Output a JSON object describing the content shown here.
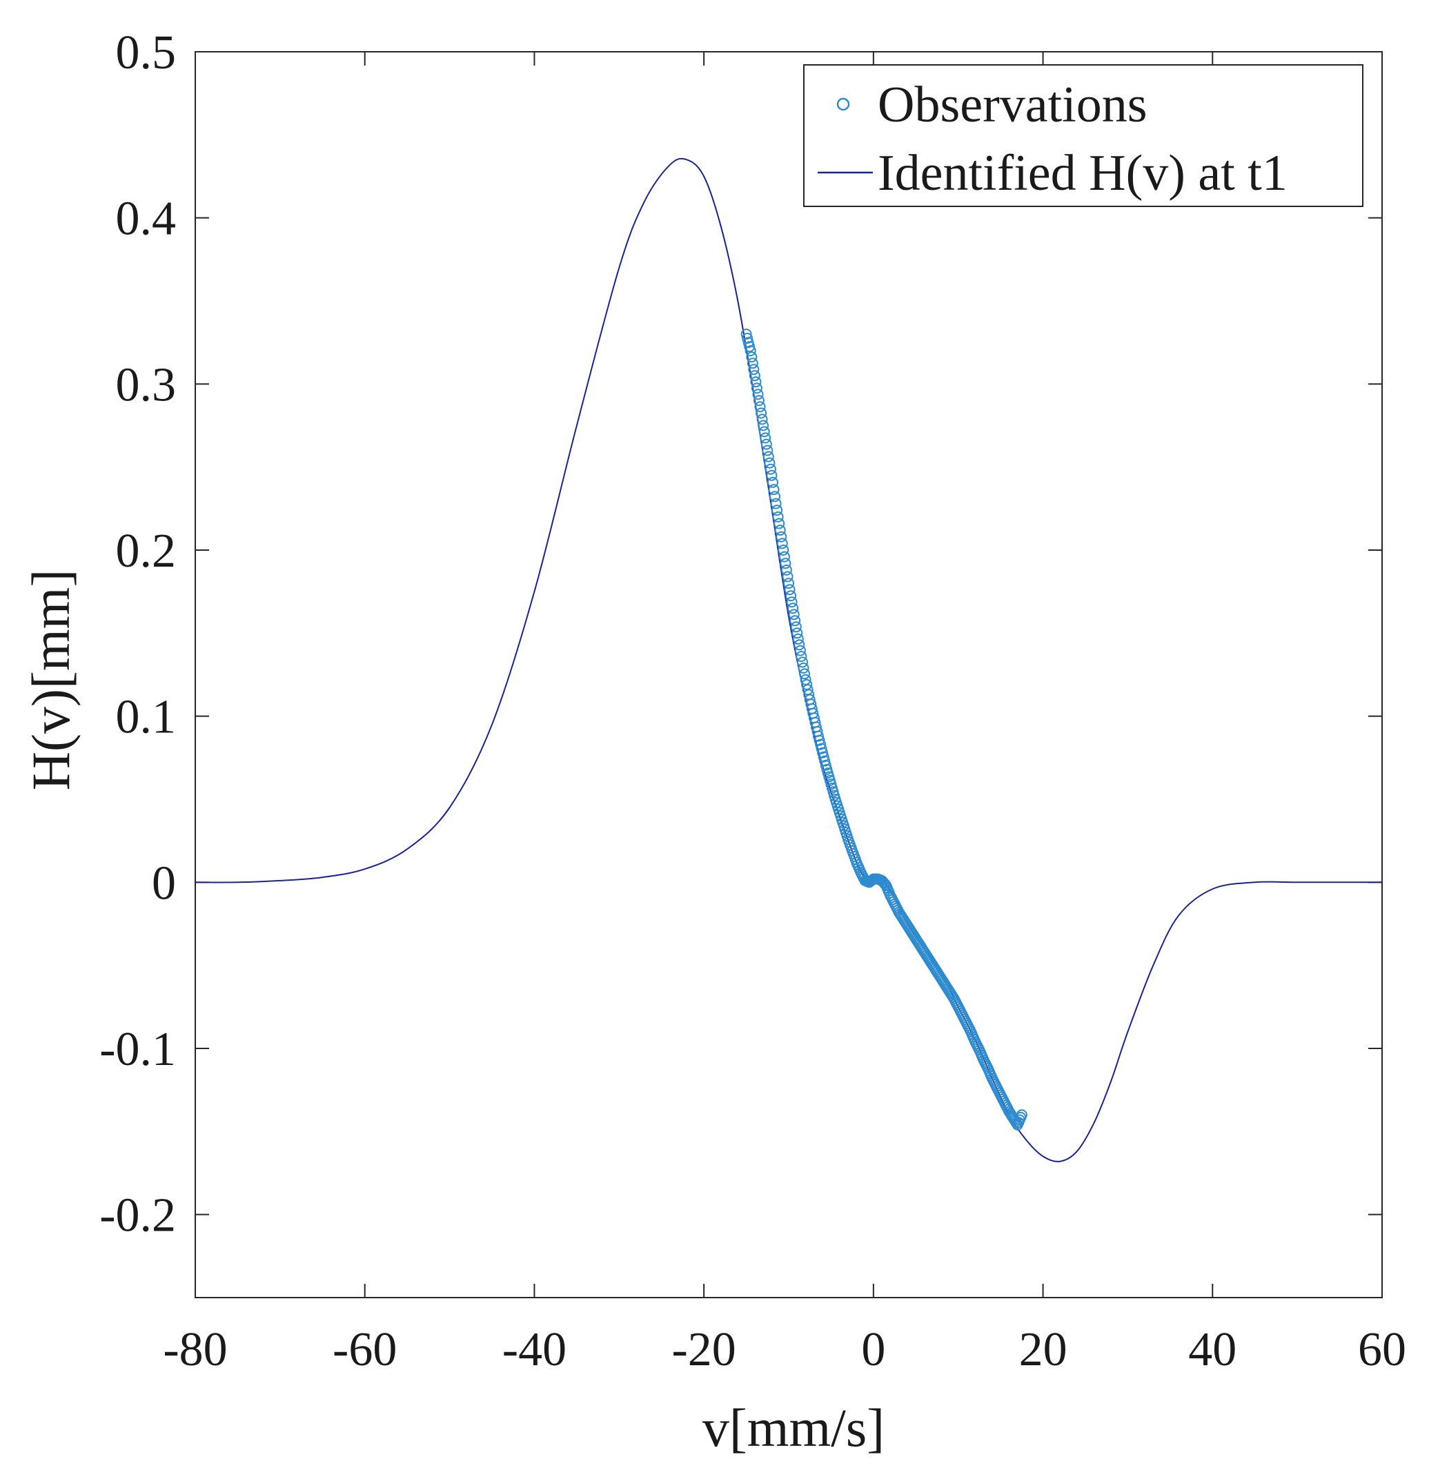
{
  "chart_data": {
    "type": "line",
    "title": "",
    "xlabel": "v[mm/s]",
    "ylabel": "H(v)[mm]",
    "xlim": [
      -80,
      60
    ],
    "ylim": [
      -0.25,
      0.5
    ],
    "xticks": [
      -80,
      -60,
      -40,
      -20,
      0,
      20,
      40,
      60
    ],
    "yticks": [
      -0.2,
      -0.1,
      0,
      0.1,
      0.2,
      0.3,
      0.4,
      0.5
    ],
    "xtick_labels": [
      "-80",
      "-60",
      "-40",
      "-20",
      "0",
      "20",
      "40",
      "60"
    ],
    "ytick_labels": [
      "-0.2",
      "-0.1",
      "0",
      "0.1",
      "0.2",
      "0.3",
      "0.4",
      "0.5"
    ],
    "legend": {
      "location": "top-right",
      "entries": [
        {
          "label": "Observations",
          "marker": "circle",
          "color": "#2e8bcf"
        },
        {
          "label": "Identified H(v) at t1",
          "marker": "line",
          "color": "#1a2396"
        }
      ]
    },
    "series": [
      {
        "name": "Identified H(v) at t1",
        "kind": "line",
        "color": "#1a2396",
        "x": [
          -80,
          -75,
          -70,
          -65,
          -60,
          -55,
          -50,
          -45,
          -40,
          -35,
          -30,
          -27,
          -24,
          -22,
          -20,
          -18,
          -16,
          -14,
          -12,
          -10,
          -8,
          -6,
          -4,
          -2,
          -1,
          0,
          1,
          2,
          4,
          6,
          8,
          10,
          12,
          14,
          16,
          18,
          20,
          22,
          24,
          26,
          28,
          30,
          33,
          36,
          40,
          45,
          50,
          55,
          60
        ],
        "y": [
          0,
          0,
          0.001,
          0.003,
          0.008,
          0.02,
          0.045,
          0.095,
          0.175,
          0.275,
          0.37,
          0.41,
          0.432,
          0.435,
          0.425,
          0.395,
          0.35,
          0.29,
          0.225,
          0.16,
          0.11,
          0.07,
          0.04,
          0.012,
          0.003,
          0.001,
          0,
          -0.005,
          -0.025,
          -0.04,
          -0.055,
          -0.075,
          -0.095,
          -0.118,
          -0.14,
          -0.155,
          -0.165,
          -0.168,
          -0.162,
          -0.145,
          -0.12,
          -0.09,
          -0.05,
          -0.02,
          -0.004,
          0,
          0,
          0,
          0
        ]
      },
      {
        "name": "Observations",
        "kind": "scatter",
        "color": "#2e8bcf",
        "x_range": [
          -15,
          17.5
        ],
        "x": [
          -15,
          -14.5,
          -14,
          -13.5,
          -13,
          -12.5,
          -12,
          -11.5,
          -11,
          -10.5,
          -10,
          -9.5,
          -9,
          -8.5,
          -8,
          -7.5,
          -7,
          -6.5,
          -6,
          -5.5,
          -5,
          -4.5,
          -4,
          -3.5,
          -3,
          -2.5,
          -2,
          -1.5,
          -1,
          -0.5,
          0,
          0.5,
          1,
          1.5,
          2,
          2.5,
          3,
          3.5,
          4,
          4.5,
          5,
          5.5,
          6,
          6.5,
          7,
          7.5,
          8,
          8.5,
          9,
          9.5,
          10,
          10.5,
          11,
          11.5,
          12,
          12.5,
          13,
          13.5,
          14,
          14.5,
          15,
          15.5,
          16,
          16.5,
          17,
          17.5
        ],
        "y": [
          0.33,
          0.32,
          0.305,
          0.29,
          0.275,
          0.26,
          0.245,
          0.228,
          0.212,
          0.196,
          0.18,
          0.165,
          0.15,
          0.136,
          0.122,
          0.11,
          0.099,
          0.088,
          0.078,
          0.068,
          0.059,
          0.05,
          0.042,
          0.034,
          0.026,
          0.019,
          0.012,
          0.006,
          0.001,
          0,
          0.002,
          0.002,
          0.001,
          -0.002,
          -0.008,
          -0.013,
          -0.018,
          -0.022,
          -0.026,
          -0.03,
          -0.034,
          -0.038,
          -0.042,
          -0.046,
          -0.05,
          -0.054,
          -0.058,
          -0.062,
          -0.066,
          -0.07,
          -0.075,
          -0.08,
          -0.085,
          -0.09,
          -0.096,
          -0.101,
          -0.107,
          -0.112,
          -0.118,
          -0.123,
          -0.128,
          -0.133,
          -0.138,
          -0.142,
          -0.146,
          -0.14
        ]
      }
    ]
  }
}
